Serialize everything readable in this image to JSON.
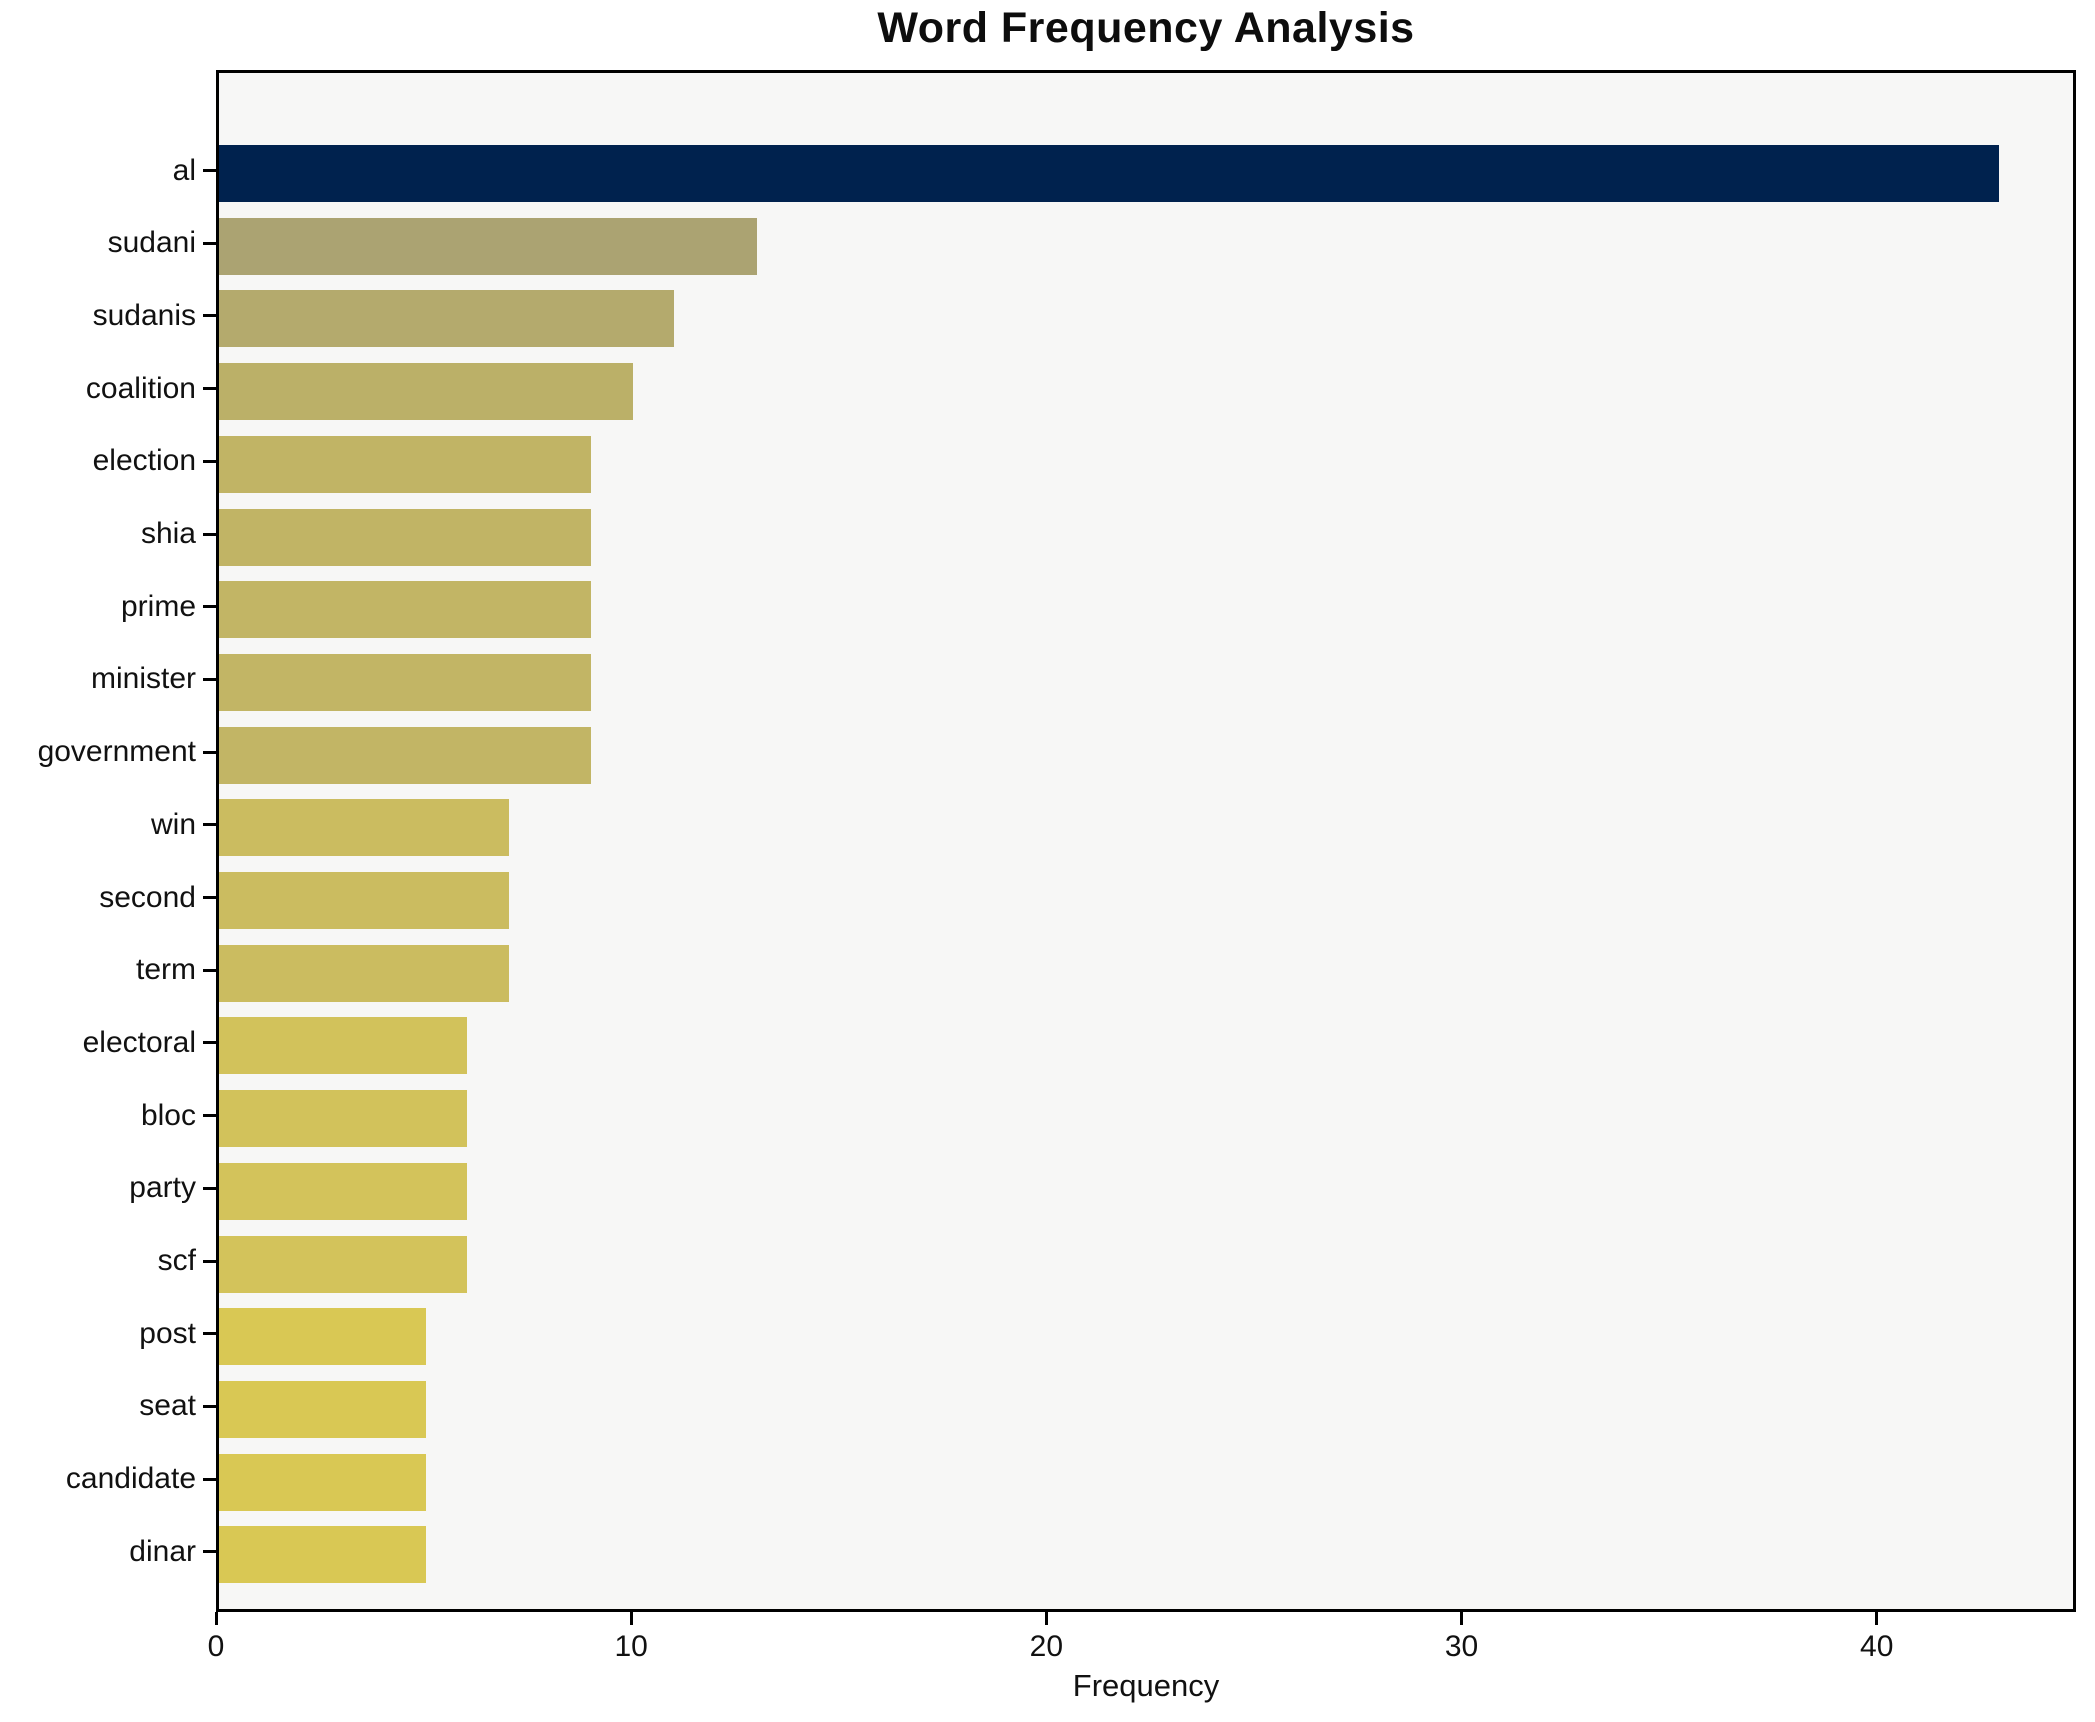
{
  "chart_data": {
    "type": "bar",
    "orientation": "horizontal",
    "title": "Word Frequency Analysis",
    "xlabel": "Frequency",
    "ylabel": "",
    "categories": [
      "al",
      "sudani",
      "sudanis",
      "coalition",
      "election",
      "shia",
      "prime",
      "minister",
      "government",
      "win",
      "second",
      "term",
      "electoral",
      "bloc",
      "party",
      "scf",
      "post",
      "seat",
      "candidate",
      "dinar"
    ],
    "values": [
      43,
      13,
      11,
      10,
      9,
      9,
      9,
      9,
      9,
      7,
      7,
      7,
      6,
      6,
      6,
      6,
      5,
      5,
      5,
      5
    ],
    "bar_colors": [
      "#00224e",
      "#aba372",
      "#b4aa6d",
      "#bbb068",
      "#c1b465",
      "#c1b465",
      "#c2b565",
      "#c2b565",
      "#c2b565",
      "#cbbc60",
      "#cbbc60",
      "#cbbc60",
      "#d2c25b",
      "#d2c25b",
      "#d3c35b",
      "#d3c35b",
      "#d9c854",
      "#d9c854",
      "#d9c854",
      "#d9c854"
    ],
    "xticks": [
      0,
      10,
      20,
      30,
      40
    ],
    "xlim": [
      0,
      44.8
    ],
    "grid": false,
    "legend": false,
    "plot_background": "#f7f7f6",
    "figure_background": "#ffffff",
    "spine_color": "#000000",
    "text_color": "#111111"
  }
}
